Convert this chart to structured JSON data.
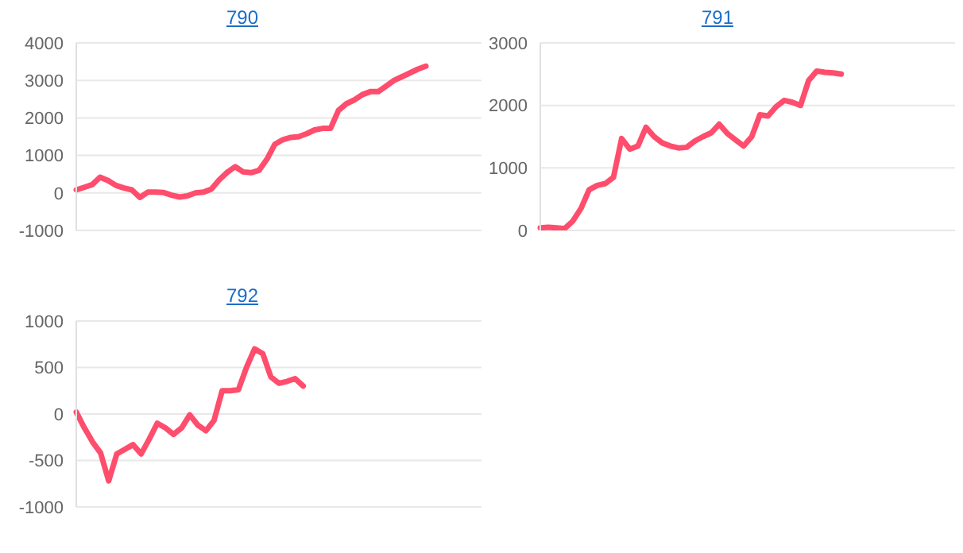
{
  "chart_data": [
    {
      "type": "line",
      "title": "790",
      "categories": [
        null,
        null,
        null,
        null,
        null,
        null,
        null,
        null,
        null,
        null,
        null,
        null,
        null,
        null,
        null,
        null,
        null,
        null,
        null,
        null,
        null,
        null,
        null,
        null,
        null,
        null,
        null,
        null,
        null,
        null,
        null,
        null,
        null,
        null,
        null,
        null,
        null,
        null,
        null,
        null,
        null,
        null,
        null,
        null,
        null,
        null,
        null,
        null,
        null,
        null,
        null,
        null
      ],
      "series": [
        {
          "color": "#ff4d6d",
          "values": [
            80,
            150,
            220,
            420,
            330,
            200,
            130,
            80,
            -120,
            20,
            20,
            10,
            -60,
            -110,
            -80,
            0,
            20,
            100,
            350,
            550,
            700,
            560,
            540,
            600,
            900,
            1300,
            1420,
            1480,
            1500,
            1580,
            1680,
            1720,
            1720,
            2200,
            2380,
            2480,
            2620,
            2700,
            2700,
            2850,
            3000,
            3100,
            3200,
            3300,
            3380,
            null,
            null,
            null,
            null,
            null,
            null,
            null
          ]
        }
      ],
      "ylim": [
        -1000,
        4000
      ],
      "yticks": [
        -1000,
        0,
        1000,
        2000,
        3000,
        4000
      ],
      "grid": "y",
      "tick_labels": "y"
    },
    {
      "type": "line",
      "title": "791",
      "categories": [
        null,
        null,
        null,
        null,
        null,
        null,
        null,
        null,
        null,
        null,
        null,
        null,
        null,
        null,
        null,
        null,
        null,
        null,
        null,
        null,
        null,
        null,
        null,
        null,
        null,
        null,
        null,
        null,
        null,
        null,
        null,
        null,
        null,
        null,
        null,
        null,
        null,
        null,
        null,
        null,
        null,
        null,
        null,
        null,
        null,
        null,
        null,
        null,
        null,
        null,
        null,
        null
      ],
      "series": [
        {
          "color": "#ff4d6d",
          "values": [
            40,
            50,
            40,
            30,
            150,
            350,
            650,
            720,
            750,
            850,
            1470,
            1300,
            1350,
            1650,
            1500,
            1400,
            1350,
            1320,
            1330,
            1430,
            1500,
            1560,
            1700,
            1550,
            1450,
            1350,
            1500,
            1850,
            1830,
            1980,
            2080,
            2050,
            2000,
            2400,
            2550,
            2530,
            2520,
            2500,
            null,
            null,
            null,
            null,
            null,
            null,
            null,
            null,
            null,
            null,
            null,
            null,
            null,
            null
          ]
        }
      ],
      "ylim": [
        0,
        3000
      ],
      "yticks": [
        0,
        1000,
        2000,
        3000
      ],
      "grid": "y",
      "tick_labels": "y"
    },
    {
      "type": "line",
      "title": "792",
      "categories": [
        null,
        null,
        null,
        null,
        null,
        null,
        null,
        null,
        null,
        null,
        null,
        null,
        null,
        null,
        null,
        null,
        null,
        null,
        null,
        null,
        null,
        null,
        null,
        null,
        null,
        null,
        null,
        null,
        null,
        null,
        null,
        null,
        null,
        null,
        null,
        null,
        null,
        null,
        null,
        null,
        null,
        null,
        null,
        null,
        null,
        null,
        null,
        null,
        null,
        null,
        null
      ],
      "series": [
        {
          "color": "#ff4d6d",
          "values": [
            20,
            -150,
            -300,
            -420,
            -720,
            -430,
            -380,
            -330,
            -430,
            -270,
            -100,
            -150,
            -220,
            -150,
            -10,
            -120,
            -180,
            -70,
            250,
            250,
            260,
            500,
            700,
            650,
            400,
            330,
            350,
            380,
            300,
            null,
            null,
            null,
            null,
            null,
            null,
            null,
            null,
            null,
            null,
            null,
            null,
            null,
            null,
            null,
            null,
            null,
            null,
            null,
            null,
            null,
            null
          ]
        }
      ],
      "ylim": [
        -1000,
        1000
      ],
      "yticks": [
        -1000,
        -500,
        0,
        500,
        1000
      ],
      "grid": "y",
      "tick_labels": "y"
    }
  ]
}
